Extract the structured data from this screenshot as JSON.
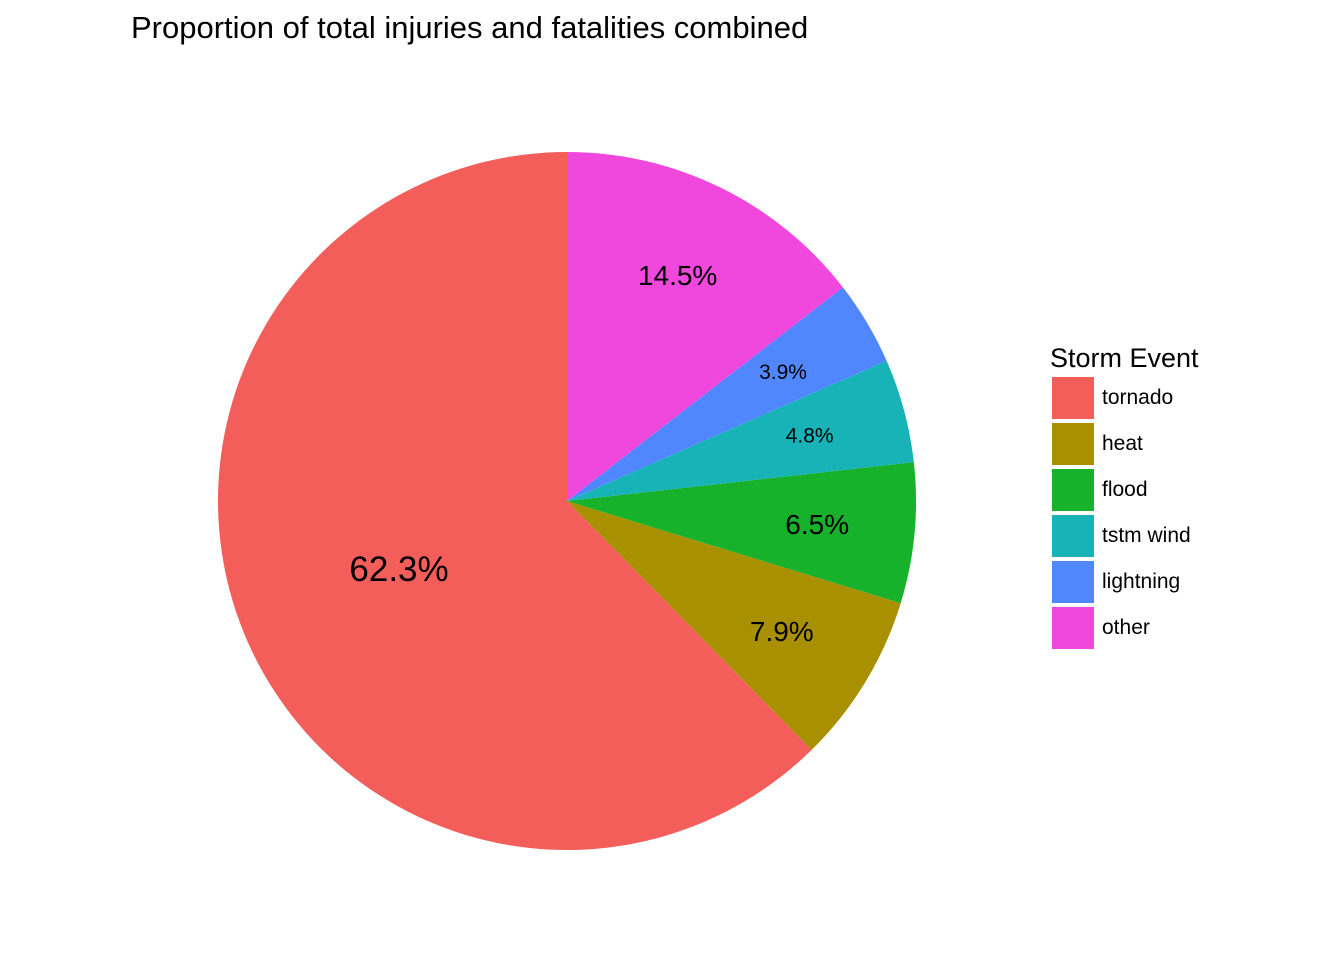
{
  "chart_data": {
    "type": "pie",
    "title": "Proportion of total injuries and fatalities combined",
    "legend": {
      "title": "Storm Event",
      "position": "right"
    },
    "categories": [
      "tornado",
      "heat",
      "flood",
      "tstm wind",
      "lightning",
      "other"
    ],
    "values": [
      62.3,
      7.9,
      6.5,
      4.8,
      3.9,
      14.5
    ],
    "labels": [
      "62.3%",
      "7.9%",
      "6.5%",
      "4.8%",
      "3.9%",
      "14.5%"
    ],
    "colors": [
      "#F35E5A",
      "#A89000",
      "#17B12B",
      "#17B3B7",
      "#5087FF",
      "#F047DC"
    ]
  }
}
